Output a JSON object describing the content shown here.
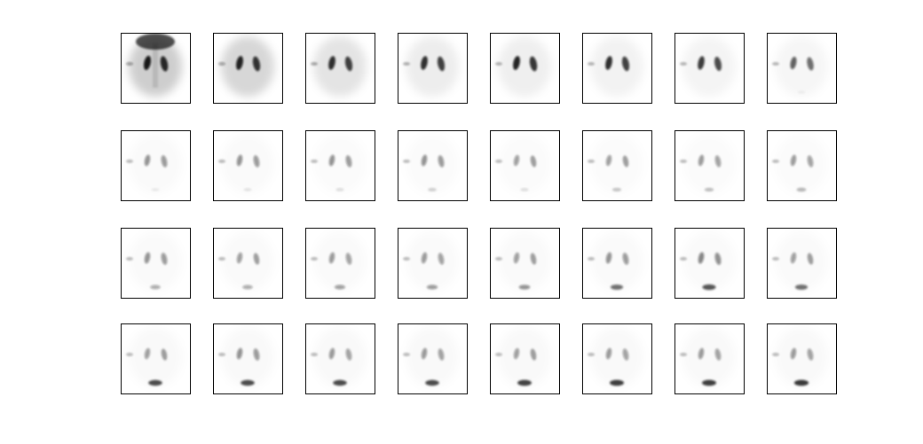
{
  "figure": {
    "rows": 4,
    "cols": 8,
    "background": "#ffffff",
    "frame_border_color": "#000000",
    "ink_color": "#111111"
  },
  "frames": [
    {
      "index": 1,
      "bladder": 0.0,
      "kidney": 0.95,
      "bg": 0.55,
      "heart": 0.9
    },
    {
      "index": 2,
      "bladder": 0.0,
      "kidney": 0.9,
      "bg": 0.45,
      "heart": 0.0
    },
    {
      "index": 3,
      "bladder": 0.0,
      "kidney": 0.85,
      "bg": 0.3,
      "heart": 0.0
    },
    {
      "index": 4,
      "bladder": 0.0,
      "kidney": 0.85,
      "bg": 0.2,
      "heart": 0.0
    },
    {
      "index": 5,
      "bladder": 0.0,
      "kidney": 0.9,
      "bg": 0.18,
      "heart": 0.0
    },
    {
      "index": 6,
      "bladder": 0.0,
      "kidney": 0.85,
      "bg": 0.15,
      "heart": 0.0
    },
    {
      "index": 7,
      "bladder": 0.0,
      "kidney": 0.8,
      "bg": 0.12,
      "heart": 0.0
    },
    {
      "index": 8,
      "bladder": 0.05,
      "kidney": 0.65,
      "bg": 0.1,
      "heart": 0.0
    },
    {
      "index": 9,
      "bladder": 0.08,
      "kidney": 0.45,
      "bg": 0.06,
      "heart": 0.0
    },
    {
      "index": 10,
      "bladder": 0.1,
      "kidney": 0.45,
      "bg": 0.06,
      "heart": 0.0
    },
    {
      "index": 11,
      "bladder": 0.12,
      "kidney": 0.45,
      "bg": 0.05,
      "heart": 0.0
    },
    {
      "index": 12,
      "bladder": 0.18,
      "kidney": 0.45,
      "bg": 0.05,
      "heart": 0.0
    },
    {
      "index": 13,
      "bladder": 0.12,
      "kidney": 0.4,
      "bg": 0.05,
      "heart": 0.0
    },
    {
      "index": 14,
      "bladder": 0.22,
      "kidney": 0.4,
      "bg": 0.05,
      "heart": 0.0
    },
    {
      "index": 15,
      "bladder": 0.25,
      "kidney": 0.42,
      "bg": 0.05,
      "heart": 0.0
    },
    {
      "index": 16,
      "bladder": 0.28,
      "kidney": 0.42,
      "bg": 0.05,
      "heart": 0.0
    },
    {
      "index": 17,
      "bladder": 0.35,
      "kidney": 0.45,
      "bg": 0.06,
      "heart": 0.0
    },
    {
      "index": 18,
      "bladder": 0.35,
      "kidney": 0.4,
      "bg": 0.06,
      "heart": 0.0
    },
    {
      "index": 19,
      "bladder": 0.4,
      "kidney": 0.42,
      "bg": 0.06,
      "heart": 0.0
    },
    {
      "index": 20,
      "bladder": 0.42,
      "kidney": 0.42,
      "bg": 0.06,
      "heart": 0.0
    },
    {
      "index": 21,
      "bladder": 0.45,
      "kidney": 0.4,
      "bg": 0.06,
      "heart": 0.0
    },
    {
      "index": 22,
      "bladder": 0.6,
      "kidney": 0.45,
      "bg": 0.06,
      "heart": 0.0
    },
    {
      "index": 23,
      "bladder": 0.7,
      "kidney": 0.5,
      "bg": 0.06,
      "heart": 0.0
    },
    {
      "index": 24,
      "bladder": 0.6,
      "kidney": 0.4,
      "bg": 0.06,
      "heart": 0.0
    },
    {
      "index": 25,
      "bladder": 0.75,
      "kidney": 0.4,
      "bg": 0.07,
      "heart": 0.0
    },
    {
      "index": 26,
      "bladder": 0.75,
      "kidney": 0.45,
      "bg": 0.07,
      "heart": 0.0
    },
    {
      "index": 27,
      "bladder": 0.75,
      "kidney": 0.42,
      "bg": 0.07,
      "heart": 0.0
    },
    {
      "index": 28,
      "bladder": 0.75,
      "kidney": 0.42,
      "bg": 0.07,
      "heart": 0.0
    },
    {
      "index": 29,
      "bladder": 0.78,
      "kidney": 0.4,
      "bg": 0.07,
      "heart": 0.0
    },
    {
      "index": 30,
      "bladder": 0.8,
      "kidney": 0.42,
      "bg": 0.07,
      "heart": 0.0
    },
    {
      "index": 31,
      "bladder": 0.8,
      "kidney": 0.42,
      "bg": 0.07,
      "heart": 0.0
    },
    {
      "index": 32,
      "bladder": 0.82,
      "kidney": 0.42,
      "bg": 0.07,
      "heart": 0.0
    }
  ]
}
